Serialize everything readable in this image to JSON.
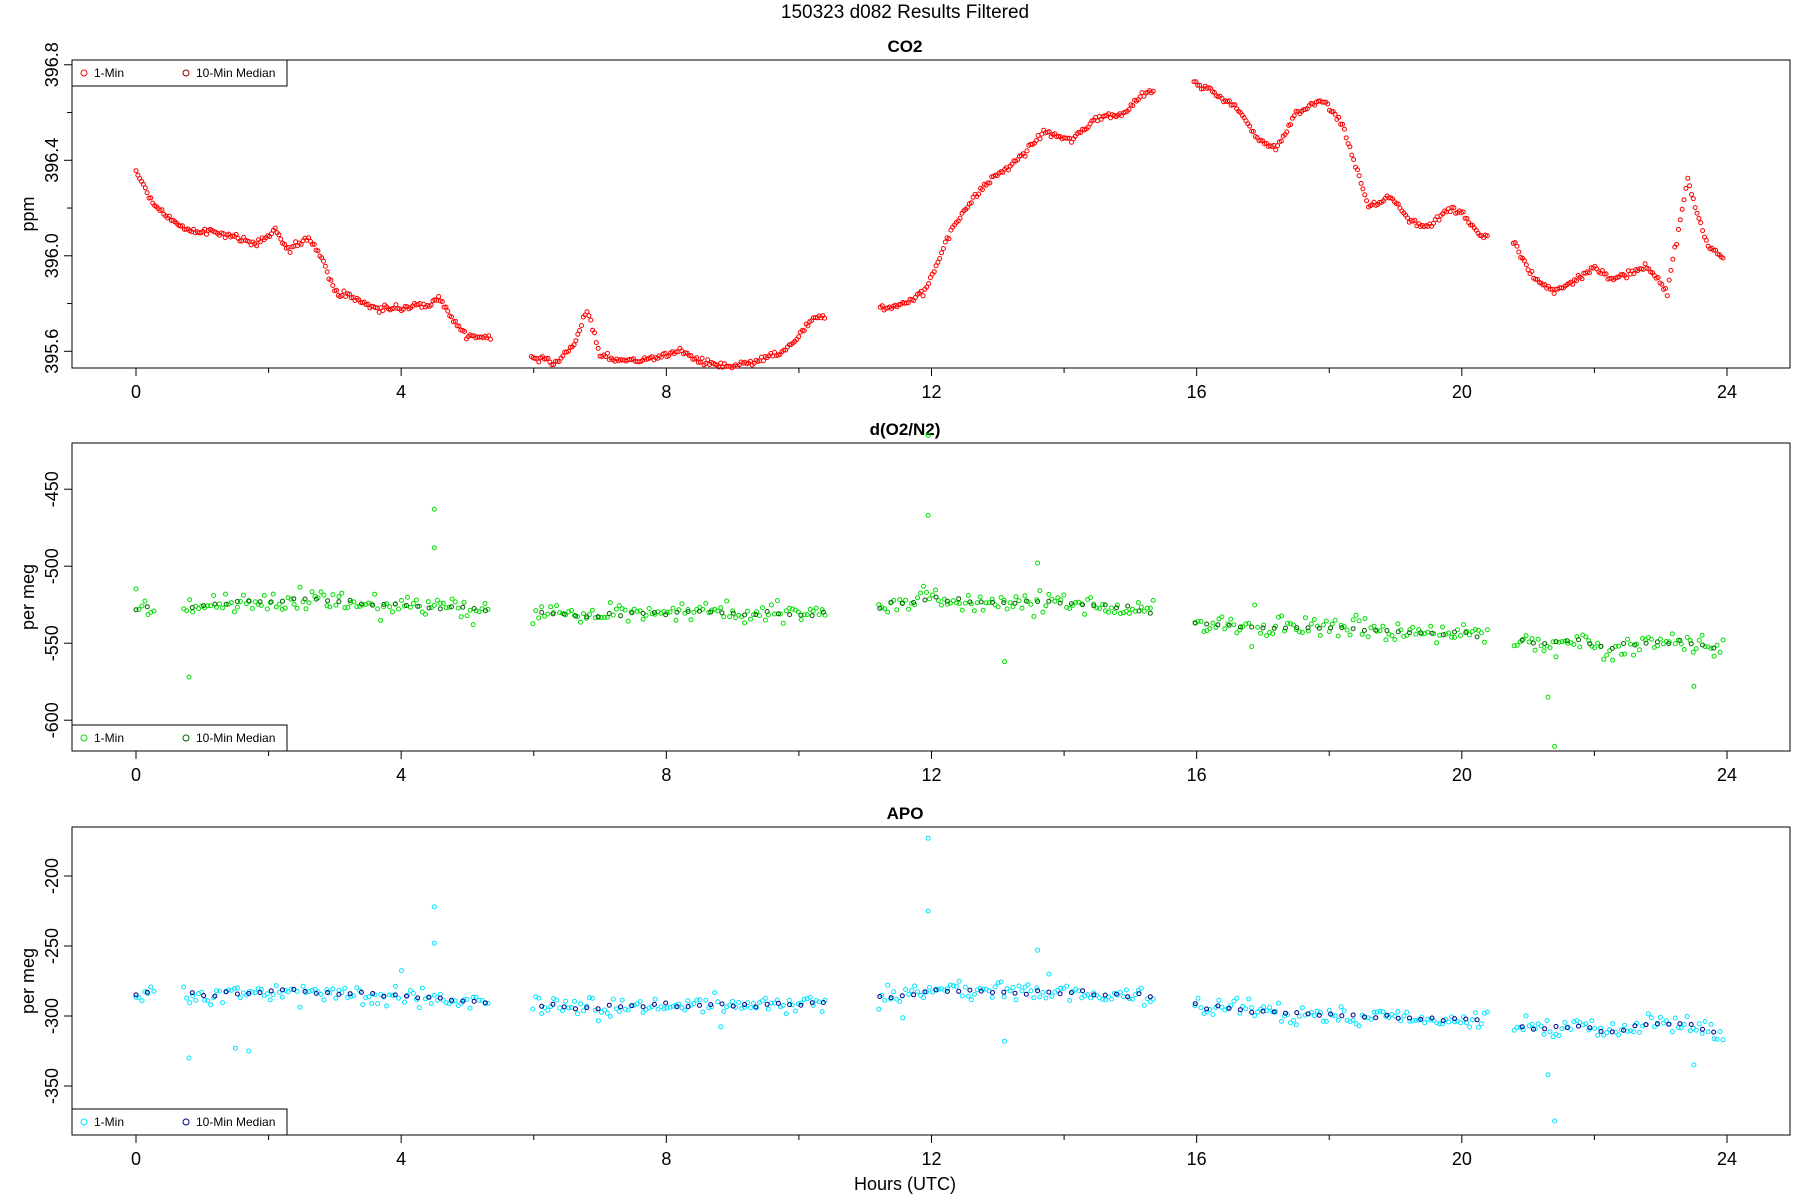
{
  "page_title": "150323   d082   Results Filtered",
  "x_axis_label": "Hours (UTC)",
  "colors": {
    "co2": "#ff0000",
    "co2_median": "#8b0000",
    "o2n2": "#00e000",
    "o2n2_median": "#006400",
    "apo": "#00e5ff",
    "apo_median": "#00008b"
  },
  "chart_data": [
    {
      "type": "scatter",
      "title": "CO2",
      "ylabel": "ppm",
      "xlabel": "",
      "xlim": [
        0,
        24
      ],
      "ylim": [
        395.53,
        396.82
      ],
      "x_ticks": [
        0,
        4,
        8,
        12,
        16,
        20,
        24
      ],
      "y_ticks": [
        395.6,
        396.0,
        396.4,
        396.8
      ],
      "y_tick_labels": [
        "395.6",
        "396.0",
        "396.4",
        "396.8"
      ],
      "grid": false,
      "legend": "top-left",
      "legend_labels": [
        "1-Min",
        "10-Min Median"
      ],
      "series": [
        {
          "name": "1-Min",
          "color": "#ff0000",
          "gaps": [
            [
              5.35,
              5.95
            ],
            [
              10.4,
              11.2
            ],
            [
              15.35,
              15.95
            ],
            [
              20.4,
              20.75
            ]
          ],
          "x": [
            0.0,
            0.3,
            0.8,
            1.2,
            1.5,
            1.8,
            2.1,
            2.3,
            2.6,
            2.8,
            3.0,
            3.3,
            3.6,
            4.0,
            4.4,
            4.6,
            4.8,
            5.0,
            5.3,
            6.0,
            6.3,
            6.6,
            6.8,
            7.0,
            7.4,
            7.8,
            8.2,
            8.6,
            9.0,
            9.4,
            9.8,
            10.2,
            11.2,
            11.6,
            11.9,
            12.2,
            12.5,
            12.9,
            13.3,
            13.7,
            14.1,
            14.5,
            14.9,
            15.2,
            16.0,
            16.3,
            16.6,
            16.9,
            17.2,
            17.5,
            17.9,
            18.2,
            18.6,
            18.9,
            19.2,
            19.5,
            19.8,
            20.0,
            20.3,
            20.8,
            21.1,
            21.4,
            21.8,
            22.0,
            22.3,
            22.8,
            23.1,
            23.4,
            23.7,
            23.95
          ],
          "y": [
            396.35,
            396.2,
            396.1,
            396.1,
            396.08,
            396.05,
            396.1,
            396.02,
            396.08,
            396.0,
            395.85,
            395.82,
            395.78,
            395.78,
            395.8,
            395.82,
            395.72,
            395.66,
            395.66,
            395.58,
            395.55,
            395.62,
            395.78,
            395.58,
            395.56,
            395.57,
            395.6,
            395.55,
            395.53,
            395.56,
            395.6,
            395.73,
            395.78,
            395.8,
            395.85,
            396.05,
            396.2,
            396.32,
            396.4,
            396.52,
            396.48,
            396.58,
            396.6,
            396.68,
            396.72,
            396.68,
            396.62,
            396.5,
            396.45,
            396.6,
            396.65,
            396.55,
            396.2,
            396.25,
            396.15,
            396.12,
            396.2,
            396.18,
            396.08,
            396.05,
            395.9,
            395.85,
            395.92,
            395.95,
            395.9,
            395.95,
            395.85,
            396.32,
            396.05,
            395.98
          ]
        },
        {
          "name": "10-Min Median",
          "color": "#8b0000",
          "x": [],
          "y": []
        }
      ]
    },
    {
      "type": "scatter",
      "title": "d(O2/N2)",
      "ylabel": "per meg",
      "xlabel": "",
      "xlim": [
        0,
        24
      ],
      "ylim": [
        -620,
        -420
      ],
      "x_ticks": [
        0,
        4,
        8,
        12,
        16,
        20,
        24
      ],
      "y_ticks": [
        -450,
        -500,
        -550,
        -600
      ],
      "y_tick_labels": [
        "-450",
        "-500",
        "-550",
        "-600"
      ],
      "grid": false,
      "legend": "bottom-left",
      "legend_labels": [
        "1-Min",
        "10-Min Median"
      ],
      "series": [
        {
          "name": "1-Min",
          "color": "#00e000",
          "gaps": [
            [
              0.3,
              0.7
            ],
            [
              5.35,
              5.95
            ],
            [
              10.4,
              11.2
            ],
            [
              15.35,
              15.95
            ],
            [
              20.4,
              20.75
            ]
          ],
          "x": [
            0.0,
            0.3,
            0.8,
            1.2,
            1.6,
            2.0,
            2.4,
            2.8,
            3.2,
            3.6,
            4.0,
            4.4,
            4.8,
            5.3,
            6.0,
            6.5,
            7.0,
            7.5,
            8.0,
            8.5,
            9.0,
            9.5,
            10.0,
            10.3,
            11.2,
            11.6,
            12.0,
            12.4,
            12.8,
            13.2,
            13.6,
            14.0,
            14.4,
            14.8,
            15.3,
            16.0,
            16.5,
            17.0,
            17.5,
            18.0,
            18.5,
            19.0,
            19.5,
            20.0,
            20.3,
            20.8,
            21.2,
            21.5,
            21.8,
            22.2,
            22.8,
            23.2,
            23.6,
            23.95
          ],
          "y": [
            -528,
            -526,
            -527,
            -525,
            -524,
            -522,
            -521,
            -522,
            -523,
            -524,
            -525,
            -526,
            -527,
            -528,
            -530,
            -531,
            -532,
            -530,
            -531,
            -530,
            -531,
            -530,
            -532,
            -530,
            -527,
            -524,
            -521,
            -522,
            -523,
            -524,
            -523,
            -524,
            -525,
            -527,
            -529,
            -537,
            -538,
            -541,
            -540,
            -540,
            -541,
            -543,
            -544,
            -543,
            -545,
            -548,
            -550,
            -549,
            -548,
            -553,
            -550,
            -549,
            -551,
            -556
          ]
        },
        {
          "name": "10-Min Median",
          "color": "#006400",
          "x": [],
          "y": []
        }
      ]
    },
    {
      "type": "scatter",
      "title": "APO",
      "ylabel": "per meg",
      "xlabel": "Hours (UTC)",
      "xlim": [
        0,
        24
      ],
      "ylim": [
        -385,
        -165
      ],
      "x_ticks": [
        0,
        4,
        8,
        12,
        16,
        20,
        24
      ],
      "y_ticks": [
        -200,
        -250,
        -300,
        -350
      ],
      "y_tick_labels": [
        "-200",
        "-250",
        "-300",
        "-350"
      ],
      "grid": false,
      "legend": "bottom-left",
      "legend_labels": [
        "1-Min",
        "10-Min Median"
      ],
      "series": [
        {
          "name": "1-Min",
          "color": "#00e5ff",
          "gaps": [
            [
              0.3,
              0.7
            ],
            [
              5.35,
              5.95
            ],
            [
              10.4,
              11.2
            ],
            [
              15.35,
              15.95
            ],
            [
              20.4,
              20.75
            ]
          ],
          "x": [
            0.0,
            0.3,
            0.8,
            1.2,
            1.6,
            2.0,
            2.4,
            2.8,
            3.2,
            3.6,
            4.0,
            4.4,
            4.8,
            5.3,
            6.0,
            6.5,
            7.0,
            7.5,
            8.0,
            8.5,
            9.0,
            9.5,
            10.0,
            10.3,
            11.2,
            11.6,
            12.0,
            12.4,
            12.8,
            13.2,
            13.6,
            14.0,
            14.4,
            14.8,
            15.3,
            16.0,
            16.5,
            17.0,
            17.5,
            18.0,
            18.5,
            19.0,
            19.5,
            20.0,
            20.3,
            20.8,
            21.2,
            21.5,
            21.8,
            22.2,
            22.8,
            23.2,
            23.6,
            23.95
          ],
          "y": [
            -285,
            -283,
            -284,
            -285,
            -284,
            -283,
            -282,
            -283,
            -284,
            -285,
            -286,
            -287,
            -289,
            -291,
            -292,
            -293,
            -294,
            -293,
            -292,
            -292,
            -293,
            -292,
            -293,
            -291,
            -288,
            -285,
            -282,
            -281,
            -282,
            -283,
            -282,
            -283,
            -284,
            -285,
            -285,
            -293,
            -295,
            -297,
            -298,
            -299,
            -300,
            -301,
            -302,
            -302,
            -304,
            -307,
            -309,
            -308,
            -307,
            -311,
            -306,
            -306,
            -308,
            -313
          ]
        },
        {
          "name": "10-Min Median",
          "color": "#00008b",
          "x": [],
          "y": []
        }
      ]
    }
  ]
}
